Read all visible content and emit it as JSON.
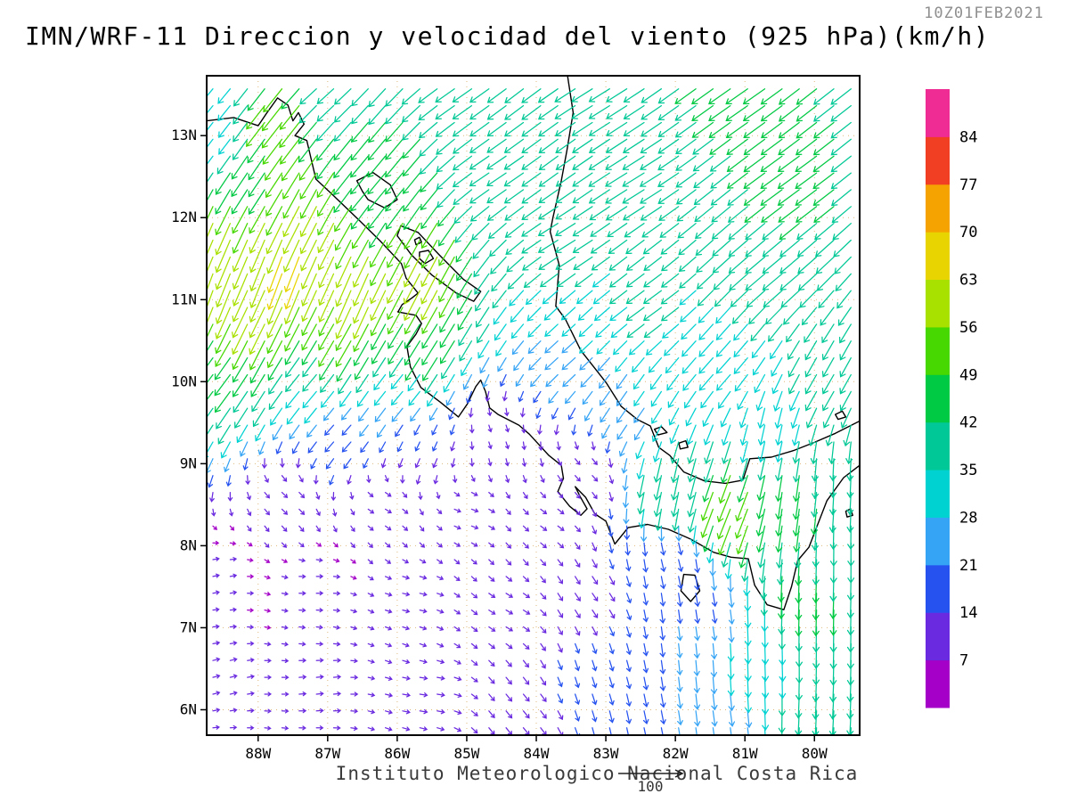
{
  "header": {
    "timestamp": "10Z01FEB2021",
    "title": "IMN/WRF-11 Direccion y velocidad del viento (925 hPa)(km/h)"
  },
  "footer": {
    "institution": "Instituto Meteorologico Nacional Costa Rica",
    "reference_label": "100"
  },
  "axes": {
    "lat_ticks": [
      {
        "value": 13,
        "label": "13N"
      },
      {
        "value": 12,
        "label": "12N"
      },
      {
        "value": 11,
        "label": "11N"
      },
      {
        "value": 10,
        "label": "10N"
      },
      {
        "value": 9,
        "label": "9N"
      },
      {
        "value": 8,
        "label": "8N"
      },
      {
        "value": 7,
        "label": "7N"
      },
      {
        "value": 6,
        "label": "6N"
      }
    ],
    "lon_ticks": [
      {
        "value": -88,
        "label": "88W"
      },
      {
        "value": -87,
        "label": "87W"
      },
      {
        "value": -86,
        "label": "86W"
      },
      {
        "value": -85,
        "label": "85W"
      },
      {
        "value": -84,
        "label": "84W"
      },
      {
        "value": -83,
        "label": "83W"
      },
      {
        "value": -82,
        "label": "82W"
      },
      {
        "value": -81,
        "label": "81W"
      },
      {
        "value": -80,
        "label": "80W"
      }
    ]
  },
  "chart_data": {
    "type": "vector_field",
    "model": "IMN/WRF-11",
    "variable": "Direccion y velocidad del viento",
    "level_hPa": 925,
    "units": "km/h",
    "valid_time": "10Z01FEB2021",
    "lon_range": [
      -88.74,
      -79.35
    ],
    "lat_range": [
      5.69,
      13.73
    ],
    "grid_step_deg": {
      "lat": 0.205,
      "lon": 0.248
    },
    "speed_levels": [
      7,
      14,
      21,
      28,
      35,
      42,
      49,
      56,
      63,
      70,
      77,
      84
    ],
    "colors": [
      "#a400c8",
      "#6a2ae0",
      "#2653f0",
      "#35a4f5",
      "#00d2d2",
      "#00c896",
      "#00c943",
      "#46d800",
      "#a8e000",
      "#e8d400",
      "#f5a300",
      "#f03f23",
      "#ef2b94"
    ],
    "grid_color": "#deb87a",
    "reference_speed": 100,
    "flow_sample_points": {
      "columns": [
        "lat",
        "lon",
        "speed_kmh",
        "dir_toward_deg"
      ],
      "rows": [
        [
          13.6,
          -88.6,
          30,
          230
        ],
        [
          13.6,
          -87.0,
          36,
          222
        ],
        [
          13.6,
          -85.0,
          38,
          215
        ],
        [
          13.6,
          -83.0,
          40,
          212
        ],
        [
          13.6,
          -81.0,
          44,
          215
        ],
        [
          13.6,
          -79.6,
          42,
          218
        ],
        [
          13.2,
          -87.6,
          55,
          232
        ],
        [
          13.0,
          -88.6,
          28,
          232
        ],
        [
          12.6,
          -88.0,
          48,
          236
        ],
        [
          12.5,
          -86.3,
          46,
          230
        ],
        [
          12.6,
          -84.5,
          38,
          214
        ],
        [
          12.5,
          -82.5,
          42,
          212
        ],
        [
          12.5,
          -80.3,
          44,
          216
        ],
        [
          12.0,
          -87.3,
          58,
          243
        ],
        [
          11.7,
          -88.6,
          60,
          247
        ],
        [
          11.4,
          -87.6,
          66,
          250
        ],
        [
          11.2,
          -88.7,
          63,
          250
        ],
        [
          11.1,
          -86.6,
          62,
          247
        ],
        [
          11.3,
          -85.6,
          58,
          243
        ],
        [
          10.8,
          -88.0,
          57,
          244
        ],
        [
          10.6,
          -86.8,
          50,
          240
        ],
        [
          10.5,
          -85.6,
          48,
          238
        ],
        [
          10.1,
          -88.6,
          43,
          233
        ],
        [
          10.0,
          -87.2,
          35,
          230
        ],
        [
          9.9,
          -85.9,
          28,
          230
        ],
        [
          11.8,
          -83.5,
          38,
          212
        ],
        [
          11.0,
          -82.3,
          36,
          216
        ],
        [
          11.5,
          -80.5,
          42,
          220
        ],
        [
          10.4,
          -83.5,
          28,
          222
        ],
        [
          10.3,
          -81.3,
          34,
          228
        ],
        [
          10.0,
          -79.8,
          36,
          240
        ],
        [
          9.4,
          -80.6,
          33,
          258
        ],
        [
          8.9,
          -79.7,
          36,
          268
        ],
        [
          8.0,
          -79.6,
          38,
          270
        ],
        [
          7.0,
          -79.7,
          42,
          269
        ],
        [
          6.0,
          -79.9,
          42,
          267
        ],
        [
          7.5,
          -80.1,
          45,
          268
        ],
        [
          6.6,
          -80.7,
          34,
          272
        ],
        [
          5.8,
          -81.3,
          24,
          278
        ],
        [
          8.6,
          -80.3,
          46,
          262
        ],
        [
          8.5,
          -81.2,
          55,
          248
        ],
        [
          8.8,
          -82.1,
          42,
          258
        ],
        [
          7.9,
          -82.0,
          18,
          285
        ],
        [
          7.3,
          -81.5,
          20,
          280
        ],
        [
          9.4,
          -86.8,
          20,
          228
        ],
        [
          9.2,
          -85.6,
          14,
          245
        ],
        [
          9.4,
          -84.6,
          9,
          290
        ],
        [
          8.6,
          -87.6,
          10,
          318
        ],
        [
          8.5,
          -86.2,
          9,
          330
        ],
        [
          8.4,
          -85.0,
          9,
          342
        ],
        [
          8.3,
          -83.8,
          10,
          325
        ],
        [
          7.6,
          -88.6,
          8,
          12
        ],
        [
          7.5,
          -87.2,
          8,
          2
        ],
        [
          7.4,
          -85.8,
          9,
          348
        ],
        [
          7.2,
          -84.4,
          10,
          330
        ],
        [
          6.4,
          -88.6,
          9,
          14
        ],
        [
          6.3,
          -87.1,
          9,
          6
        ],
        [
          6.2,
          -85.6,
          10,
          352
        ],
        [
          6.0,
          -84.2,
          13,
          310
        ],
        [
          6.4,
          -83.2,
          16,
          288
        ],
        [
          7.4,
          -83.2,
          13,
          305
        ],
        [
          5.8,
          -82.5,
          20,
          282
        ],
        [
          8.9,
          -83.3,
          10,
          315
        ],
        [
          9.7,
          -82.6,
          28,
          235
        ]
      ]
    }
  },
  "map": {
    "features": [
      {
        "name": "pacific-coastline",
        "type": "line",
        "pts": [
          [
            -88.74,
            13.18
          ],
          [
            -88.35,
            13.22
          ],
          [
            -88.0,
            13.12
          ],
          [
            -87.88,
            13.27
          ],
          [
            -87.72,
            13.46
          ],
          [
            -87.57,
            13.37
          ],
          [
            -87.5,
            13.18
          ],
          [
            -87.42,
            13.28
          ],
          [
            -87.34,
            13.14
          ],
          [
            -87.47,
            13.0
          ],
          [
            -87.3,
            12.94
          ],
          [
            -87.17,
            12.47
          ],
          [
            -86.93,
            12.28
          ],
          [
            -86.55,
            11.97
          ],
          [
            -86.25,
            11.72
          ],
          [
            -85.94,
            11.44
          ],
          [
            -85.87,
            11.26
          ],
          [
            -85.7,
            11.08
          ],
          [
            -85.79,
            11.02
          ],
          [
            -85.93,
            10.94
          ],
          [
            -85.99,
            10.85
          ],
          [
            -85.73,
            10.81
          ],
          [
            -85.65,
            10.71
          ],
          [
            -85.73,
            10.58
          ],
          [
            -85.86,
            10.43
          ],
          [
            -85.81,
            10.18
          ],
          [
            -85.66,
            9.93
          ],
          [
            -85.38,
            9.75
          ],
          [
            -85.12,
            9.57
          ],
          [
            -84.99,
            9.73
          ],
          [
            -84.87,
            9.94
          ],
          [
            -84.8,
            10.02
          ],
          [
            -84.73,
            9.88
          ],
          [
            -84.67,
            9.68
          ],
          [
            -84.55,
            9.6
          ],
          [
            -84.25,
            9.47
          ],
          [
            -84.1,
            9.36
          ],
          [
            -83.82,
            9.1
          ],
          [
            -83.64,
            8.98
          ],
          [
            -83.61,
            8.82
          ],
          [
            -83.69,
            8.66
          ],
          [
            -83.52,
            8.48
          ],
          [
            -83.36,
            8.37
          ],
          [
            -83.27,
            8.45
          ],
          [
            -83.37,
            8.6
          ],
          [
            -83.44,
            8.72
          ],
          [
            -83.29,
            8.59
          ],
          [
            -83.16,
            8.39
          ],
          [
            -83.0,
            8.3
          ],
          [
            -82.87,
            8.02
          ],
          [
            -82.68,
            8.22
          ],
          [
            -82.4,
            8.26
          ],
          [
            -82.1,
            8.2
          ],
          [
            -81.78,
            8.08
          ],
          [
            -81.45,
            7.92
          ],
          [
            -81.2,
            7.86
          ],
          [
            -80.95,
            7.84
          ],
          [
            -80.86,
            7.52
          ],
          [
            -80.68,
            7.28
          ],
          [
            -80.44,
            7.22
          ],
          [
            -80.33,
            7.5
          ],
          [
            -80.24,
            7.82
          ],
          [
            -80.08,
            7.98
          ],
          [
            -79.98,
            8.2
          ],
          [
            -79.82,
            8.55
          ],
          [
            -79.58,
            8.83
          ],
          [
            -79.35,
            8.98
          ]
        ]
      },
      {
        "name": "caribbean-coastline",
        "type": "line",
        "pts": [
          [
            -83.55,
            13.73
          ],
          [
            -83.47,
            13.28
          ],
          [
            -83.56,
            12.82
          ],
          [
            -83.64,
            12.45
          ],
          [
            -83.76,
            12.0
          ],
          [
            -83.8,
            11.83
          ],
          [
            -83.67,
            11.42
          ],
          [
            -83.72,
            10.92
          ],
          [
            -83.58,
            10.76
          ],
          [
            -83.36,
            10.38
          ],
          [
            -83.1,
            10.1
          ],
          [
            -82.99,
            9.98
          ],
          [
            -82.78,
            9.7
          ],
          [
            -82.55,
            9.54
          ],
          [
            -82.36,
            9.46
          ],
          [
            -82.24,
            9.2
          ],
          [
            -82.08,
            9.1
          ],
          [
            -81.88,
            8.9
          ],
          [
            -81.58,
            8.79
          ],
          [
            -81.28,
            8.76
          ],
          [
            -81.03,
            8.8
          ],
          [
            -80.93,
            9.06
          ],
          [
            -80.62,
            9.08
          ],
          [
            -80.3,
            9.16
          ],
          [
            -80.0,
            9.26
          ],
          [
            -79.7,
            9.37
          ],
          [
            -79.35,
            9.52
          ]
        ]
      },
      {
        "name": "lake-managua",
        "type": "polygon",
        "pts": [
          [
            -86.58,
            12.45
          ],
          [
            -86.35,
            12.55
          ],
          [
            -86.1,
            12.4
          ],
          [
            -86.0,
            12.22
          ],
          [
            -86.18,
            12.12
          ],
          [
            -86.42,
            12.22
          ],
          [
            -86.5,
            12.32
          ]
        ]
      },
      {
        "name": "lake-nicaragua",
        "type": "polygon",
        "pts": [
          [
            -85.95,
            11.9
          ],
          [
            -85.7,
            11.82
          ],
          [
            -85.4,
            11.55
          ],
          [
            -85.05,
            11.25
          ],
          [
            -84.8,
            11.1
          ],
          [
            -84.9,
            10.98
          ],
          [
            -85.15,
            11.08
          ],
          [
            -85.5,
            11.3
          ],
          [
            -85.8,
            11.55
          ],
          [
            -86.0,
            11.78
          ]
        ]
      },
      {
        "name": "ometepe-island",
        "type": "polygon",
        "pts": [
          [
            -85.68,
            11.58
          ],
          [
            -85.55,
            11.6
          ],
          [
            -85.48,
            11.5
          ],
          [
            -85.6,
            11.44
          ],
          [
            -85.68,
            11.5
          ]
        ]
      },
      {
        "name": "zapatera-island",
        "type": "polygon",
        "pts": [
          [
            -85.75,
            11.73
          ],
          [
            -85.68,
            11.76
          ],
          [
            -85.65,
            11.7
          ],
          [
            -85.73,
            11.67
          ]
        ]
      },
      {
        "name": "coiba-island",
        "type": "polygon",
        "pts": [
          [
            -81.88,
            7.65
          ],
          [
            -81.72,
            7.64
          ],
          [
            -81.65,
            7.45
          ],
          [
            -81.78,
            7.32
          ],
          [
            -81.92,
            7.45
          ]
        ]
      },
      {
        "name": "bocas-island-1",
        "type": "polygon",
        "pts": [
          [
            -82.3,
            9.42
          ],
          [
            -82.2,
            9.45
          ],
          [
            -82.12,
            9.38
          ],
          [
            -82.25,
            9.35
          ]
        ]
      },
      {
        "name": "bocas-island-2",
        "type": "polygon",
        "pts": [
          [
            -81.95,
            9.25
          ],
          [
            -81.85,
            9.28
          ],
          [
            -81.82,
            9.2
          ],
          [
            -81.93,
            9.18
          ]
        ]
      },
      {
        "name": "caribbean-islet",
        "type": "polygon",
        "pts": [
          [
            -79.7,
            9.6
          ],
          [
            -79.6,
            9.64
          ],
          [
            -79.55,
            9.57
          ],
          [
            -79.66,
            9.54
          ]
        ]
      },
      {
        "name": "gulf-panama-islet",
        "type": "polygon",
        "pts": [
          [
            -79.55,
            8.42
          ],
          [
            -79.48,
            8.45
          ],
          [
            -79.45,
            8.37
          ],
          [
            -79.53,
            8.35
          ]
        ]
      }
    ]
  }
}
